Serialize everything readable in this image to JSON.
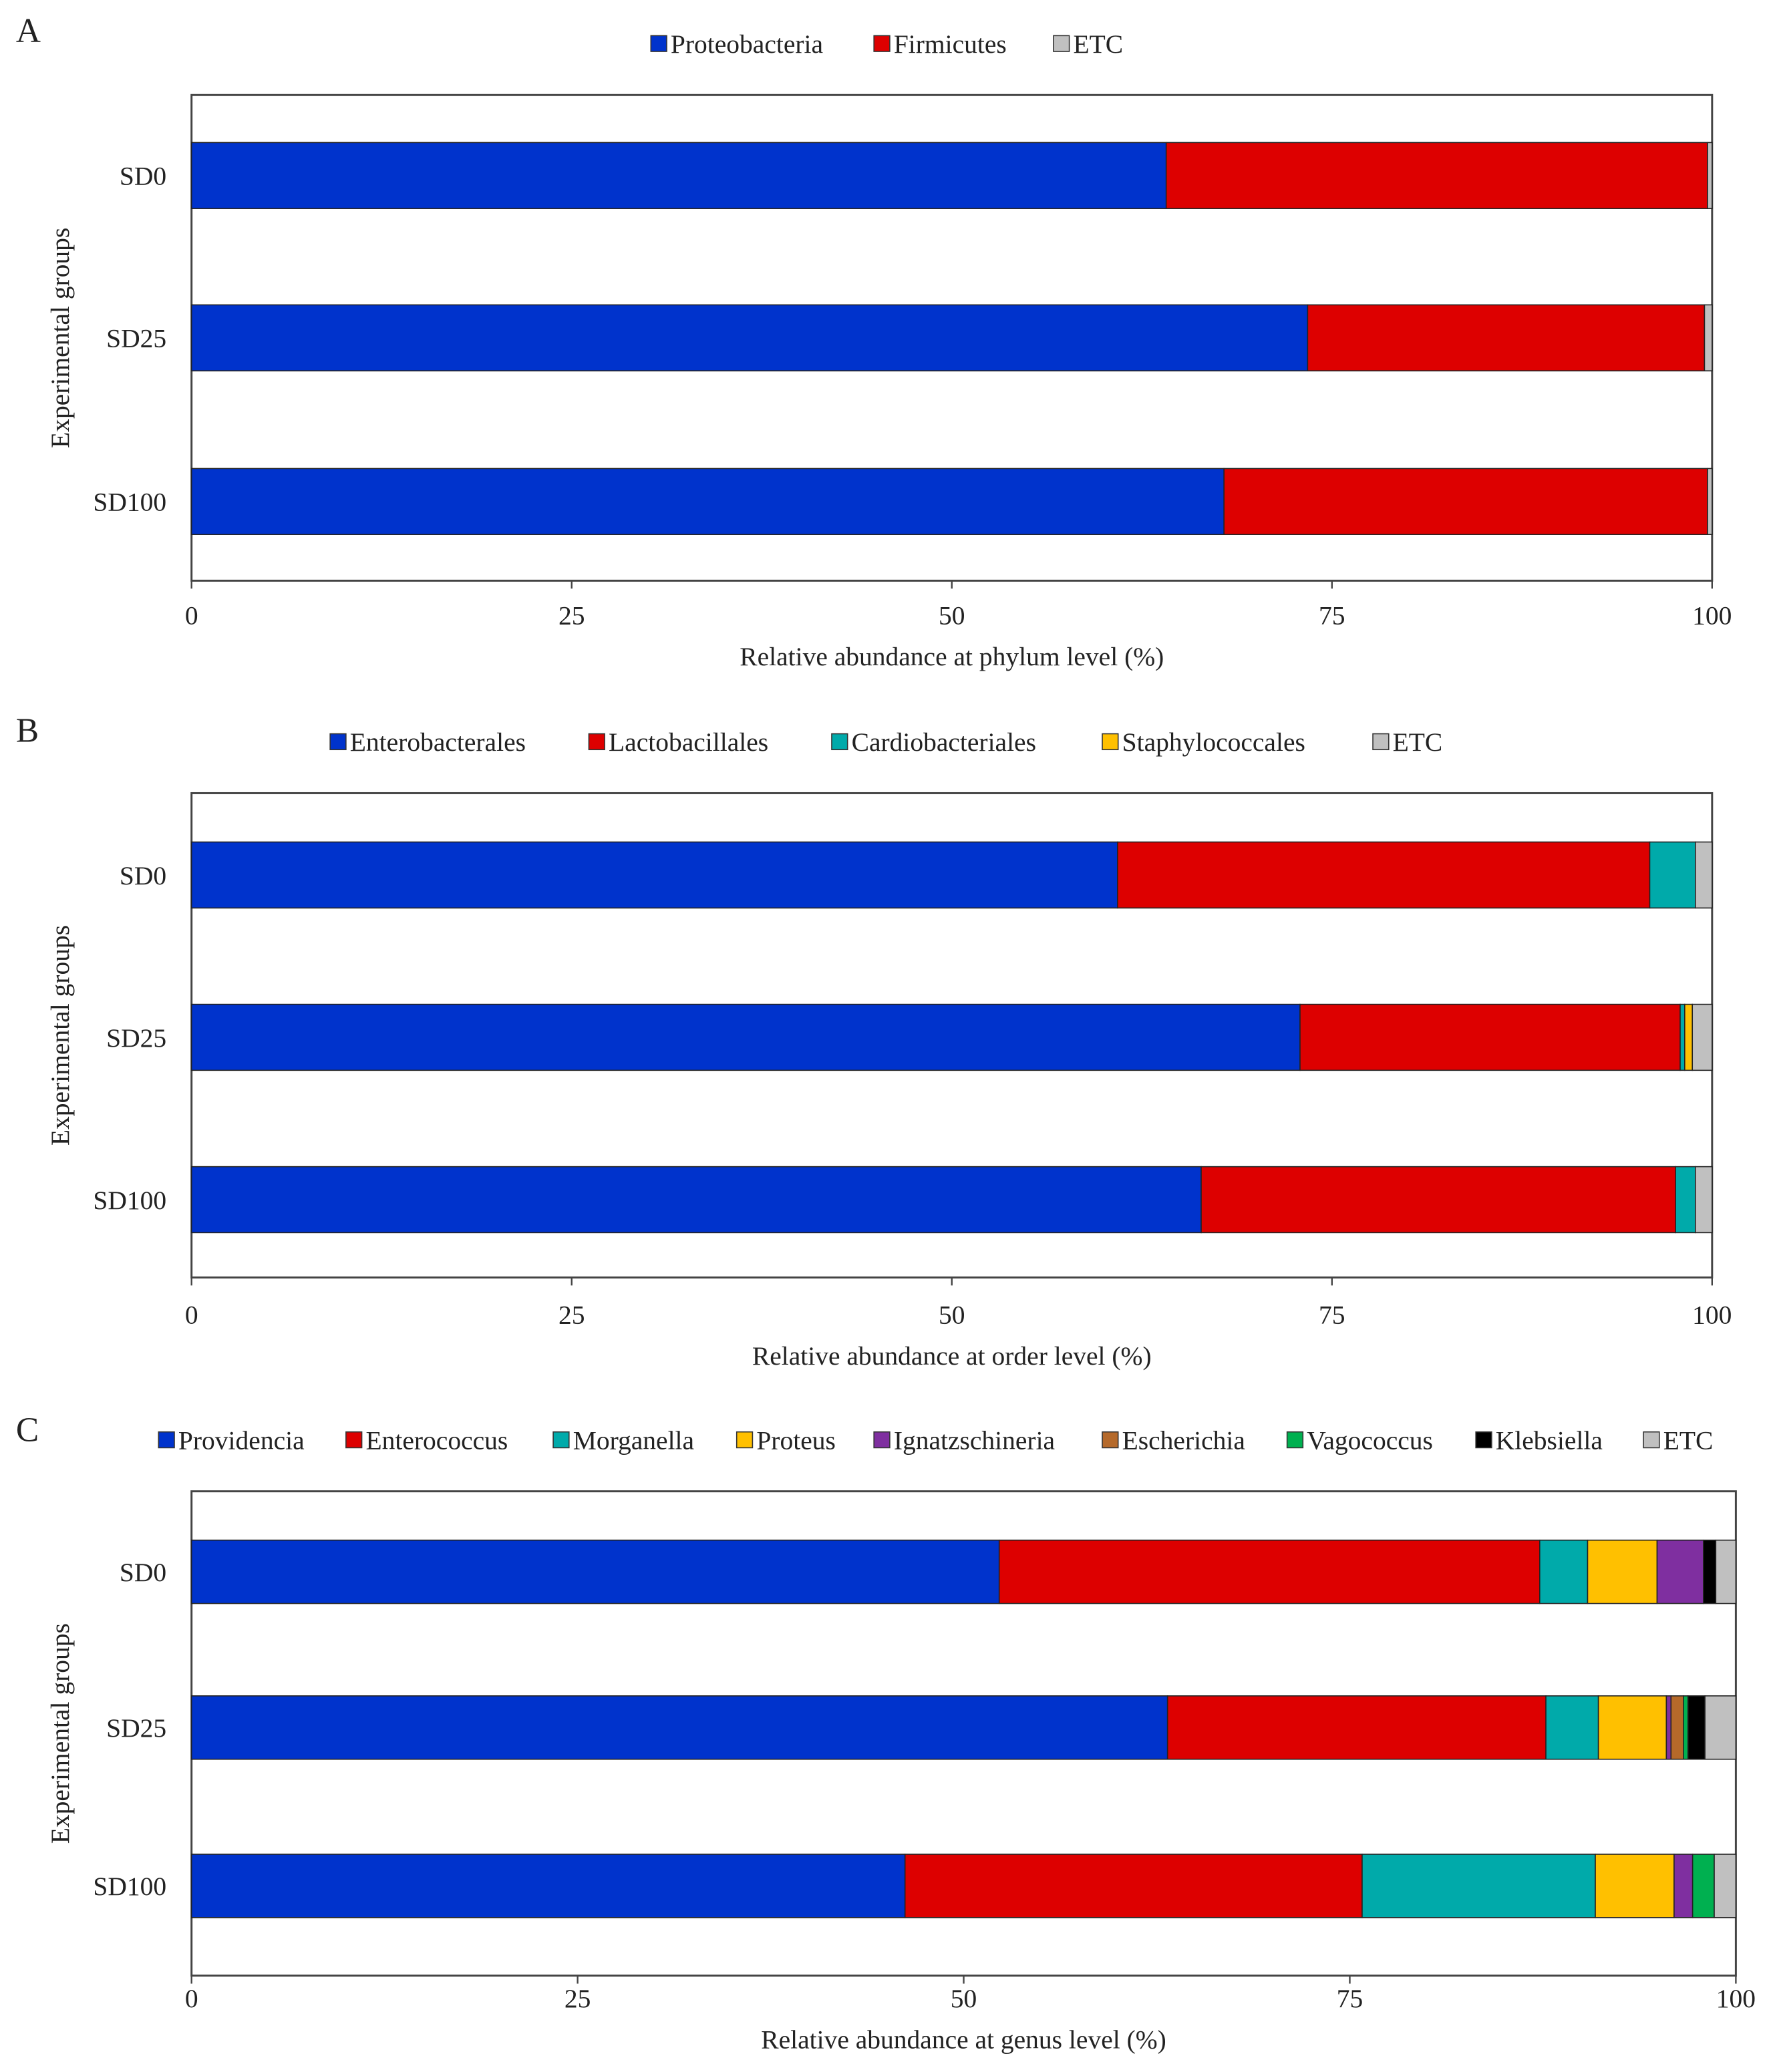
{
  "chart_data": [
    {
      "type": "bar",
      "orientation": "horizontal-stacked",
      "panel_label": "A",
      "categories": [
        "SD0",
        "SD25",
        "SD100"
      ],
      "xlabel": "Relative  abundance at phylum level (%)",
      "ylabel": "Experimental groups",
      "xlim": [
        0,
        100
      ],
      "xticks": [
        "0",
        "25",
        "50",
        "75",
        "100"
      ],
      "legend_position": "top-center",
      "grid": false,
      "series": [
        {
          "name": "Proteobacteria",
          "color": "#0033cc",
          "values": [
            64.1,
            73.4,
            67.9
          ]
        },
        {
          "name": "Firmicutes",
          "color": "#dd0000",
          "values": [
            35.6,
            26.1,
            31.8
          ]
        },
        {
          "name": "ETC",
          "color": "#c0c0c0",
          "values": [
            0.3,
            0.5,
            0.3
          ]
        }
      ]
    },
    {
      "type": "bar",
      "orientation": "horizontal-stacked",
      "panel_label": "B",
      "categories": [
        "SD0",
        "SD25",
        "SD100"
      ],
      "xlabel": "Relative  abundance at order level (%)",
      "ylabel": "Experimental groups",
      "xlim": [
        0,
        100
      ],
      "xticks": [
        "0",
        "25",
        "50",
        "75",
        "100"
      ],
      "legend_position": "top-center",
      "grid": false,
      "series": [
        {
          "name": "Enterobacterales",
          "color": "#0033cc",
          "values": [
            60.9,
            72.9,
            66.4
          ]
        },
        {
          "name": "Lactobacillales",
          "color": "#dd0000",
          "values": [
            35.0,
            25.0,
            31.2
          ]
        },
        {
          "name": "Cardiobacteriales",
          "color": "#00aaaa",
          "values": [
            3.0,
            0.3,
            1.3
          ]
        },
        {
          "name": "Staphylococcales",
          "color": "#ffc000",
          "values": [
            0.0,
            0.5,
            0.0
          ]
        },
        {
          "name": "ETC",
          "color": "#c0c0c0",
          "values": [
            1.1,
            1.3,
            1.1
          ]
        }
      ]
    },
    {
      "type": "bar",
      "orientation": "horizontal-stacked",
      "panel_label": "C",
      "categories": [
        "SD0",
        "SD25",
        "SD100"
      ],
      "xlabel": "Relative  abundance at genus level (%)",
      "ylabel": "Experimental groups",
      "xlim": [
        0,
        100
      ],
      "xticks": [
        "0",
        "25",
        "50",
        "75",
        "100"
      ],
      "legend_position": "top-center",
      "grid": false,
      "series": [
        {
          "name": "Providencia",
          "color": "#0033cc",
          "values": [
            52.3,
            63.2,
            46.2
          ]
        },
        {
          "name": "Enterococcus",
          "color": "#dd0000",
          "values": [
            35.0,
            24.5,
            29.6
          ]
        },
        {
          "name": "Morganella",
          "color": "#00aaaa",
          "values": [
            3.1,
            3.4,
            15.1
          ]
        },
        {
          "name": "Proteus",
          "color": "#ffc000",
          "values": [
            4.5,
            4.4,
            5.1
          ]
        },
        {
          "name": "Ignatzschineria",
          "color": "#7f2fa0",
          "values": [
            3.0,
            0.3,
            1.2
          ]
        },
        {
          "name": "Escherichia",
          "color": "#b5692a",
          "values": [
            0.0,
            0.8,
            0.0
          ]
        },
        {
          "name": "Vagococcus",
          "color": "#00b050",
          "values": [
            0.0,
            0.3,
            1.4
          ]
        },
        {
          "name": "Klebsiella",
          "color": "#000000",
          "values": [
            0.8,
            1.1,
            0.0
          ]
        },
        {
          "name": "ETC",
          "color": "#c0c0c0",
          "values": [
            1.3,
            2.0,
            1.4
          ]
        }
      ]
    }
  ]
}
